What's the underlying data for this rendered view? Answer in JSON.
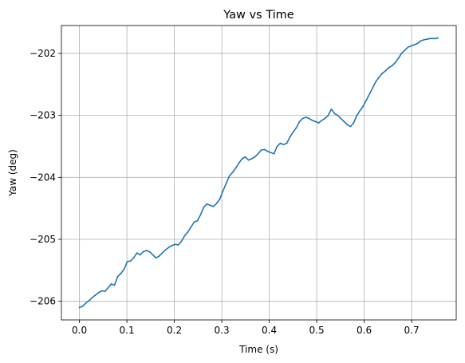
{
  "chart_data": {
    "type": "line",
    "title": "Yaw vs Time",
    "xlabel": "Time (s)",
    "ylabel": "Yaw (deg)",
    "xlim": [
      -0.038,
      0.794
    ],
    "ylim": [
      -206.3,
      -201.55
    ],
    "x_ticks": [
      0.0,
      0.1,
      0.2,
      0.3,
      0.4,
      0.5,
      0.6,
      0.7
    ],
    "x_tick_labels": [
      "0.0",
      "0.1",
      "0.2",
      "0.3",
      "0.4",
      "0.5",
      "0.6",
      "0.7"
    ],
    "y_ticks": [
      -206,
      -205,
      -204,
      -203,
      -202
    ],
    "y_tick_labels": [
      "−206",
      "−205",
      "−204",
      "−203",
      "−202"
    ],
    "grid": true,
    "line_color": "#1f77b4",
    "series": [
      {
        "x": [
          0.0,
          0.0067,
          0.0134,
          0.0202,
          0.0269,
          0.0336,
          0.0403,
          0.047,
          0.0538,
          0.0605,
          0.0672,
          0.0739,
          0.0806,
          0.0874,
          0.0941,
          0.1008,
          0.1075,
          0.1142,
          0.121,
          0.1277,
          0.1344,
          0.1411,
          0.1478,
          0.1546,
          0.1613,
          0.168,
          0.1747,
          0.1814,
          0.1882,
          0.1949,
          0.2016,
          0.2083,
          0.215,
          0.2218,
          0.2285,
          0.2352,
          0.2419,
          0.2486,
          0.2554,
          0.2621,
          0.2688,
          0.2755,
          0.2822,
          0.289,
          0.2957,
          0.3024,
          0.3091,
          0.3158,
          0.3226,
          0.3293,
          0.336,
          0.3427,
          0.3494,
          0.3562,
          0.3629,
          0.3696,
          0.3763,
          0.383,
          0.3898,
          0.3965,
          0.4032,
          0.4099,
          0.4166,
          0.4234,
          0.4301,
          0.4368,
          0.4435,
          0.4502,
          0.457,
          0.4637,
          0.4704,
          0.4771,
          0.4838,
          0.4906,
          0.4973,
          0.504,
          0.5107,
          0.5174,
          0.5242,
          0.5309,
          0.5376,
          0.5443,
          0.551,
          0.5578,
          0.5645,
          0.5712,
          0.5779,
          0.5846,
          0.5914,
          0.5981,
          0.6048,
          0.6115,
          0.6182,
          0.625,
          0.6317,
          0.6384,
          0.6451,
          0.6518,
          0.6586,
          0.6653,
          0.672,
          0.6787,
          0.6854,
          0.6922,
          0.6989,
          0.7056,
          0.7123,
          0.719,
          0.7258,
          0.7325,
          0.7392,
          0.7459,
          0.7526,
          0.755
        ],
        "y": [
          -206.1,
          -206.08,
          -206.03,
          -205.99,
          -205.94,
          -205.9,
          -205.86,
          -205.83,
          -205.84,
          -205.78,
          -205.72,
          -205.74,
          -205.6,
          -205.55,
          -205.48,
          -205.36,
          -205.35,
          -205.3,
          -205.22,
          -205.25,
          -205.2,
          -205.18,
          -205.2,
          -205.25,
          -205.3,
          -205.27,
          -205.22,
          -205.17,
          -205.13,
          -205.1,
          -205.08,
          -205.09,
          -205.03,
          -204.94,
          -204.88,
          -204.8,
          -204.72,
          -204.7,
          -204.6,
          -204.48,
          -204.43,
          -204.45,
          -204.47,
          -204.42,
          -204.35,
          -204.22,
          -204.1,
          -203.98,
          -203.92,
          -203.85,
          -203.77,
          -203.7,
          -203.67,
          -203.72,
          -203.7,
          -203.67,
          -203.62,
          -203.56,
          -203.55,
          -203.58,
          -203.6,
          -203.62,
          -203.5,
          -203.45,
          -203.47,
          -203.45,
          -203.35,
          -203.27,
          -203.2,
          -203.1,
          -203.05,
          -203.03,
          -203.05,
          -203.08,
          -203.1,
          -203.12,
          -203.08,
          -203.05,
          -203.0,
          -202.9,
          -202.97,
          -203.0,
          -203.05,
          -203.1,
          -203.15,
          -203.18,
          -203.12,
          -203.0,
          -202.92,
          -202.85,
          -202.75,
          -202.65,
          -202.55,
          -202.45,
          -202.38,
          -202.32,
          -202.28,
          -202.23,
          -202.2,
          -202.15,
          -202.08,
          -202.0,
          -201.95,
          -201.9,
          -201.88,
          -201.86,
          -201.84,
          -201.8,
          -201.78,
          -201.77,
          -201.76,
          -201.76,
          -201.76,
          -201.75
        ]
      }
    ]
  }
}
